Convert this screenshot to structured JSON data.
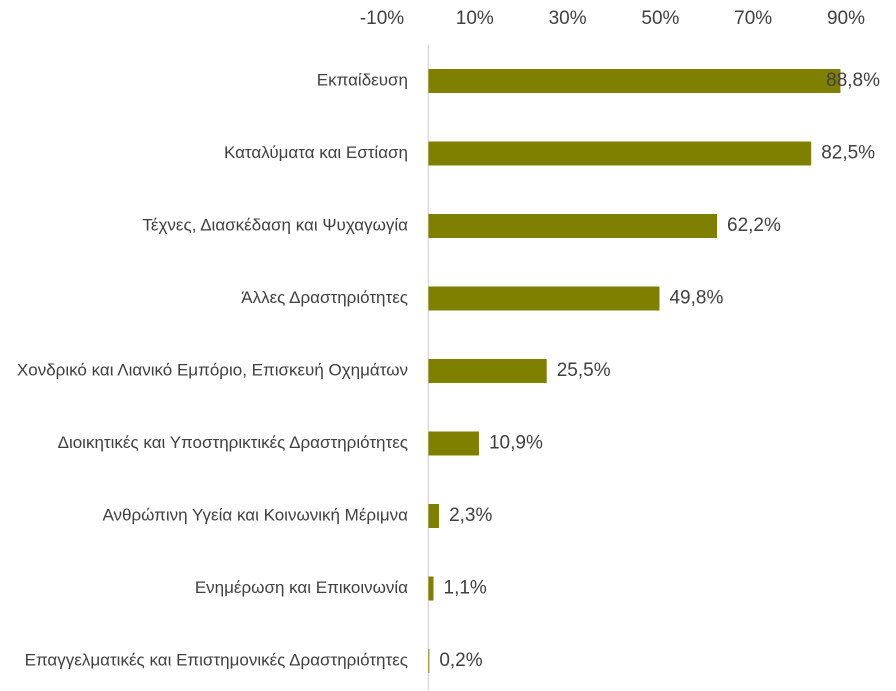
{
  "chart_data": {
    "type": "barh",
    "categories": [
      "Εκπαίδευση",
      "Καταλύματα και Εστίαση",
      "Τέχνες, Διασκέδαση και Ψυχαγωγία",
      "Άλλες Δραστηριότητες",
      "Χονδρικό και Λιανικό Εμπόριο, Επισκευή Οχημάτων",
      "Διοικητικές και Υποστηρικτικές Δραστηριότητες",
      "Ανθρώπινη Υγεία και Κοινωνική Μέριμνα",
      "Ενημέρωση και Επικοινωνία",
      "Επαγγελματικές και Επιστημονικές Δραστηριότητες"
    ],
    "values": [
      88.8,
      82.5,
      62.2,
      49.8,
      25.5,
      10.9,
      2.3,
      1.1,
      0.2
    ],
    "value_labels": [
      "88,8%",
      "82,5%",
      "62,2%",
      "49,8%",
      "25,5%",
      "10,9%",
      "2,3%",
      "1,1%",
      "0,2%"
    ],
    "color": "#808000",
    "xlim": [
      -10,
      90
    ],
    "xticks": [
      {
        "value": -10,
        "label": "-10%"
      },
      {
        "value": 10,
        "label": "10%"
      },
      {
        "value": 30,
        "label": "30%"
      },
      {
        "value": 50,
        "label": "50%"
      },
      {
        "value": 70,
        "label": "70%"
      },
      {
        "value": 90,
        "label": "90%"
      }
    ],
    "grid": false
  }
}
